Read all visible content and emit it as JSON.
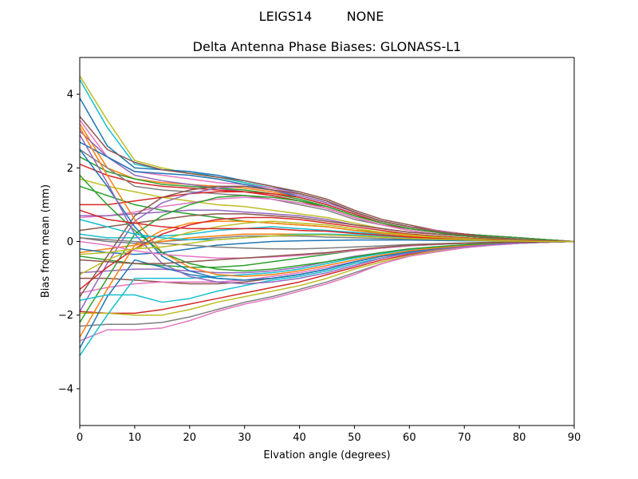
{
  "chart_data": {
    "type": "line",
    "suptitle_left": "LEIGS14",
    "suptitle_right": "NONE",
    "title": "Delta Antenna Phase Biases: GLONASS-L1",
    "xlabel": "Elvation angle (degrees)",
    "ylabel": "Bias from mean (mm)",
    "xlim": [
      0,
      90
    ],
    "ylim": [
      -5,
      5
    ],
    "xticks": [
      0,
      10,
      20,
      30,
      40,
      50,
      60,
      70,
      80,
      90
    ],
    "yticks": [
      -4,
      -2,
      0,
      2,
      4
    ],
    "grid": false,
    "x": [
      0,
      5,
      10,
      15,
      20,
      25,
      30,
      35,
      40,
      45,
      50,
      55,
      60,
      65,
      70,
      75,
      80,
      85,
      90
    ],
    "series": [
      {
        "color": "#bcbd22",
        "values": [
          4.5,
          3.3,
          2.2,
          2.0,
          1.85,
          1.75,
          1.6,
          1.45,
          1.3,
          1.1,
          0.8,
          0.55,
          0.4,
          0.3,
          0.2,
          0.15,
          0.1,
          0.05,
          0
        ]
      },
      {
        "color": "#17becf",
        "values": [
          4.4,
          3.1,
          2.1,
          1.95,
          1.9,
          1.75,
          1.6,
          1.45,
          1.3,
          1.1,
          0.8,
          0.55,
          0.4,
          0.3,
          0.2,
          0.15,
          0.1,
          0.05,
          0
        ]
      },
      {
        "color": "#1f77b4",
        "values": [
          3.9,
          2.6,
          2.0,
          1.95,
          1.9,
          1.8,
          1.65,
          1.5,
          1.3,
          1.1,
          0.8,
          0.55,
          0.4,
          0.3,
          0.2,
          0.15,
          0.1,
          0.05,
          0
        ]
      },
      {
        "color": "#8c564b",
        "values": [
          3.4,
          2.5,
          2.15,
          1.95,
          1.85,
          1.75,
          1.65,
          1.5,
          1.35,
          1.15,
          0.85,
          0.6,
          0.45,
          0.3,
          0.2,
          0.15,
          0.1,
          0.05,
          0
        ]
      },
      {
        "color": "#e377c2",
        "values": [
          3.3,
          2.3,
          1.9,
          1.8,
          1.7,
          1.6,
          1.55,
          1.45,
          1.3,
          1.1,
          0.8,
          0.55,
          0.4,
          0.3,
          0.2,
          0.15,
          0.1,
          0.05,
          0
        ]
      },
      {
        "color": "#ff7f0e",
        "values": [
          3.2,
          2.0,
          1.7,
          1.6,
          1.55,
          1.5,
          1.45,
          1.35,
          1.2,
          1.0,
          0.75,
          0.5,
          0.35,
          0.25,
          0.2,
          0.15,
          0.1,
          0.05,
          0
        ]
      },
      {
        "color": "#9467bd",
        "values": [
          3.0,
          2.3,
          1.8,
          1.65,
          1.55,
          1.45,
          1.35,
          1.25,
          1.1,
          0.95,
          0.7,
          0.5,
          0.35,
          0.25,
          0.2,
          0.15,
          0.1,
          0.05,
          0
        ]
      },
      {
        "color": "#2ca02c",
        "values": [
          2.3,
          1.9,
          1.7,
          1.55,
          1.5,
          1.45,
          1.4,
          1.3,
          1.15,
          0.95,
          0.7,
          0.5,
          0.35,
          0.25,
          0.2,
          0.15,
          0.1,
          0.05,
          0
        ]
      },
      {
        "color": "#d62728",
        "values": [
          2.1,
          1.8,
          1.6,
          1.5,
          1.45,
          1.4,
          1.35,
          1.25,
          1.1,
          0.9,
          0.65,
          0.45,
          0.35,
          0.25,
          0.15,
          0.1,
          0.05,
          0.02,
          0
        ]
      },
      {
        "color": "#7f7f7f",
        "values": [
          2.5,
          2.0,
          1.5,
          1.4,
          1.35,
          1.3,
          1.25,
          1.15,
          1.0,
          0.85,
          0.6,
          0.45,
          0.3,
          0.2,
          0.15,
          0.1,
          0.05,
          0.02,
          0
        ]
      },
      {
        "color": "#1f77b4",
        "values": [
          2.7,
          2.3,
          1.9,
          1.85,
          1.8,
          1.7,
          1.55,
          1.4,
          1.2,
          1.0,
          0.75,
          0.5,
          0.35,
          0.25,
          0.2,
          0.1,
          0.05,
          0.02,
          0
        ]
      },
      {
        "color": "#bcbd22",
        "values": [
          1.7,
          1.5,
          1.35,
          1.2,
          1.1,
          1.0,
          0.95,
          0.85,
          0.75,
          0.65,
          0.5,
          0.35,
          0.25,
          0.2,
          0.15,
          0.1,
          0.05,
          0.02,
          0
        ]
      },
      {
        "color": "#2ca02c",
        "values": [
          1.5,
          1.25,
          1.0,
          0.85,
          0.75,
          0.65,
          0.55,
          0.5,
          0.45,
          0.4,
          0.3,
          0.25,
          0.2,
          0.15,
          0.1,
          0.07,
          0.04,
          0.02,
          0
        ]
      },
      {
        "color": "#d62728",
        "values": [
          1.0,
          1.0,
          1.1,
          1.2,
          1.3,
          1.35,
          1.35,
          1.3,
          1.2,
          1.0,
          0.75,
          0.5,
          0.35,
          0.25,
          0.2,
          0.1,
          0.05,
          0.02,
          0
        ]
      },
      {
        "color": "#e377c2",
        "values": [
          0.65,
          0.7,
          0.8,
          0.95,
          1.05,
          1.15,
          1.2,
          1.15,
          1.05,
          0.9,
          0.65,
          0.45,
          0.3,
          0.2,
          0.15,
          0.1,
          0.05,
          0.02,
          0
        ]
      },
      {
        "color": "#9467bd",
        "values": [
          0.7,
          0.7,
          0.75,
          0.8,
          0.85,
          0.85,
          0.8,
          0.75,
          0.7,
          0.6,
          0.45,
          0.35,
          0.25,
          0.2,
          0.15,
          0.1,
          0.05,
          0.02,
          0
        ]
      },
      {
        "color": "#8c564b",
        "values": [
          0.3,
          0.4,
          0.5,
          0.6,
          0.7,
          0.75,
          0.75,
          0.7,
          0.65,
          0.55,
          0.45,
          0.35,
          0.25,
          0.2,
          0.15,
          0.1,
          0.05,
          0.02,
          0
        ]
      },
      {
        "color": "#17becf",
        "values": [
          0.2,
          0.1,
          0.1,
          0.15,
          0.2,
          0.3,
          0.35,
          0.4,
          0.35,
          0.3,
          0.25,
          0.2,
          0.15,
          0.1,
          0.07,
          0.05,
          0.03,
          0.01,
          0
        ]
      },
      {
        "color": "#7f7f7f",
        "values": [
          0.1,
          0.0,
          -0.05,
          0.0,
          0.05,
          0.1,
          0.15,
          0.15,
          0.15,
          0.12,
          0.1,
          0.08,
          0.06,
          0.05,
          0.04,
          0.03,
          0.02,
          0.01,
          0
        ]
      },
      {
        "color": "#ff7f0e",
        "values": [
          -0.3,
          -0.2,
          -0.1,
          0.0,
          0.1,
          0.15,
          0.2,
          0.2,
          0.2,
          0.18,
          0.15,
          0.12,
          0.1,
          0.07,
          0.05,
          0.03,
          0.02,
          0.01,
          0
        ]
      },
      {
        "color": "#1f77b4",
        "values": [
          -0.2,
          -0.3,
          -0.35,
          -0.3,
          -0.2,
          -0.1,
          -0.05,
          0.0,
          0.02,
          0.03,
          0.04,
          0.04,
          0.04,
          0.03,
          0.02,
          0.02,
          0.01,
          0.0,
          0
        ]
      },
      {
        "color": "#2ca02c",
        "values": [
          -0.4,
          -0.5,
          -0.6,
          -0.65,
          -0.7,
          -0.7,
          -0.65,
          -0.55,
          -0.45,
          -0.35,
          -0.25,
          -0.18,
          -0.12,
          -0.08,
          -0.05,
          -0.03,
          -0.02,
          -0.01,
          0
        ]
      },
      {
        "color": "#9467bd",
        "values": [
          -0.85,
          -0.8,
          -0.75,
          -0.75,
          -0.8,
          -0.85,
          -0.85,
          -0.8,
          -0.7,
          -0.55,
          -0.4,
          -0.3,
          -0.2,
          -0.15,
          -0.1,
          -0.06,
          -0.03,
          -0.01,
          0
        ]
      },
      {
        "color": "#8c564b",
        "values": [
          -1.0,
          -1.0,
          -1.05,
          -1.1,
          -1.15,
          -1.15,
          -1.1,
          -1.0,
          -0.9,
          -0.75,
          -0.55,
          -0.4,
          -0.3,
          -0.2,
          -0.12,
          -0.07,
          -0.04,
          -0.02,
          0
        ]
      },
      {
        "color": "#e377c2",
        "values": [
          -1.4,
          -1.25,
          -1.15,
          -1.1,
          -1.1,
          -1.1,
          -1.05,
          -0.95,
          -0.85,
          -0.7,
          -0.55,
          -0.4,
          -0.28,
          -0.2,
          -0.12,
          -0.07,
          -0.04,
          -0.02,
          0
        ]
      },
      {
        "color": "#d62728",
        "values": [
          -1.9,
          -1.95,
          -1.95,
          -1.85,
          -1.7,
          -1.55,
          -1.4,
          -1.25,
          -1.1,
          -0.9,
          -0.7,
          -0.5,
          -0.35,
          -0.25,
          -0.15,
          -0.09,
          -0.05,
          -0.02,
          0
        ]
      },
      {
        "color": "#bcbd22",
        "values": [
          -1.95,
          -1.95,
          -2.0,
          -2.0,
          -1.85,
          -1.65,
          -1.5,
          -1.35,
          -1.2,
          -1.0,
          -0.75,
          -0.55,
          -0.38,
          -0.25,
          -0.15,
          -0.09,
          -0.05,
          -0.02,
          0
        ]
      },
      {
        "color": "#7f7f7f",
        "values": [
          -2.3,
          -2.25,
          -2.25,
          -2.2,
          -2.05,
          -1.85,
          -1.65,
          -1.5,
          -1.3,
          -1.1,
          -0.85,
          -0.6,
          -0.4,
          -0.28,
          -0.17,
          -0.1,
          -0.05,
          -0.02,
          0
        ]
      },
      {
        "color": "#e377c2",
        "values": [
          -2.7,
          -2.4,
          -2.4,
          -2.35,
          -2.15,
          -1.9,
          -1.7,
          -1.55,
          -1.35,
          -1.15,
          -0.9,
          -0.6,
          -0.4,
          -0.28,
          -0.17,
          -0.1,
          -0.05,
          -0.02,
          0
        ]
      },
      {
        "color": "#17becf",
        "values": [
          -3.1,
          -2.0,
          -1.0,
          -1.0,
          -1.0,
          -0.95,
          -0.9,
          -0.85,
          -0.75,
          -0.6,
          -0.45,
          -0.33,
          -0.22,
          -0.15,
          -0.1,
          -0.06,
          -0.03,
          -0.01,
          0
        ]
      },
      {
        "color": "#1f77b4",
        "values": [
          -2.9,
          -1.5,
          -0.5,
          -0.7,
          -0.9,
          -1.0,
          -1.05,
          -1.0,
          -0.9,
          -0.75,
          -0.55,
          -0.4,
          -0.28,
          -0.2,
          -0.12,
          -0.07,
          -0.04,
          -0.02,
          0
        ]
      },
      {
        "color": "#ff7f0e",
        "values": [
          -2.6,
          -1.3,
          -0.1,
          0.3,
          0.5,
          0.55,
          0.55,
          0.5,
          0.45,
          0.4,
          0.3,
          0.22,
          0.15,
          0.1,
          0.07,
          0.04,
          0.02,
          0.01,
          0
        ]
      },
      {
        "color": "#2ca02c",
        "values": [
          -2.2,
          -1.0,
          0.2,
          0.7,
          1.0,
          1.2,
          1.25,
          1.2,
          1.1,
          0.95,
          0.7,
          0.5,
          0.35,
          0.25,
          0.15,
          0.1,
          0.05,
          0.02,
          0
        ]
      },
      {
        "color": "#9467bd",
        "values": [
          -1.9,
          -0.6,
          0.55,
          1.05,
          1.3,
          1.45,
          1.5,
          1.4,
          1.25,
          1.05,
          0.8,
          0.55,
          0.4,
          0.28,
          0.18,
          0.11,
          0.06,
          0.02,
          0
        ]
      },
      {
        "color": "#8c564b",
        "values": [
          -1.5,
          -0.4,
          0.7,
          1.2,
          1.4,
          1.5,
          1.5,
          1.4,
          1.3,
          1.1,
          0.8,
          0.55,
          0.4,
          0.28,
          0.18,
          0.11,
          0.06,
          0.02,
          0
        ]
      },
      {
        "color": "#d62728",
        "values": [
          -1.3,
          -0.7,
          -0.2,
          0.2,
          0.45,
          0.6,
          0.65,
          0.65,
          0.6,
          0.5,
          0.4,
          0.3,
          0.2,
          0.14,
          0.1,
          0.06,
          0.03,
          0.01,
          0
        ]
      },
      {
        "color": "#bcbd22",
        "values": [
          -0.9,
          -0.5,
          -0.2,
          0.05,
          0.25,
          0.4,
          0.5,
          0.55,
          0.5,
          0.45,
          0.35,
          0.25,
          0.18,
          0.12,
          0.08,
          0.05,
          0.03,
          0.01,
          0
        ]
      },
      {
        "color": "#17becf",
        "values": [
          -1.6,
          -1.45,
          -1.45,
          -1.65,
          -1.55,
          -1.35,
          -1.2,
          -1.05,
          -0.95,
          -0.8,
          -0.6,
          -0.45,
          -0.3,
          -0.2,
          -0.12,
          -0.07,
          -0.04,
          -0.02,
          0
        ]
      },
      {
        "color": "#1f77b4",
        "values": [
          2.5,
          1.5,
          0.4,
          -0.4,
          -0.8,
          -1.0,
          -1.05,
          -1.0,
          -0.9,
          -0.75,
          -0.55,
          -0.4,
          -0.28,
          -0.2,
          -0.12,
          -0.07,
          -0.04,
          -0.02,
          0
        ]
      },
      {
        "color": "#ff7f0e",
        "values": [
          3.1,
          1.8,
          0.6,
          -0.3,
          -0.7,
          -0.9,
          -0.95,
          -0.9,
          -0.8,
          -0.65,
          -0.5,
          -0.37,
          -0.25,
          -0.17,
          -0.11,
          -0.07,
          -0.04,
          -0.02,
          0
        ]
      },
      {
        "color": "#2ca02c",
        "values": [
          1.8,
          1.0,
          0.3,
          -0.3,
          -0.6,
          -0.75,
          -0.8,
          -0.75,
          -0.65,
          -0.55,
          -0.42,
          -0.3,
          -0.2,
          -0.14,
          -0.09,
          -0.05,
          -0.03,
          -0.01,
          0
        ]
      },
      {
        "color": "#9467bd",
        "values": [
          2.9,
          1.6,
          0.2,
          -0.6,
          -0.95,
          -1.1,
          -1.15,
          -1.1,
          -1.0,
          -0.85,
          -0.65,
          -0.45,
          -0.32,
          -0.22,
          -0.14,
          -0.08,
          -0.04,
          -0.02,
          0
        ]
      },
      {
        "color": "#e377c2",
        "values": [
          0.0,
          -0.1,
          -0.25,
          -0.35,
          -0.4,
          -0.45,
          -0.45,
          -0.42,
          -0.38,
          -0.32,
          -0.25,
          -0.18,
          -0.12,
          -0.08,
          -0.05,
          -0.03,
          -0.02,
          -0.01,
          0
        ]
      },
      {
        "color": "#7f7f7f",
        "values": [
          0.1,
          0.05,
          0.0,
          -0.05,
          -0.1,
          -0.15,
          -0.18,
          -0.2,
          -0.2,
          -0.18,
          -0.15,
          -0.12,
          -0.08,
          -0.06,
          -0.04,
          -0.02,
          -0.01,
          0.0,
          0
        ]
      },
      {
        "color": "#8c564b",
        "values": [
          -0.5,
          -0.55,
          -0.6,
          -0.6,
          -0.55,
          -0.5,
          -0.45,
          -0.4,
          -0.35,
          -0.3,
          -0.22,
          -0.16,
          -0.1,
          -0.07,
          -0.05,
          -0.03,
          -0.02,
          -0.01,
          0
        ]
      },
      {
        "color": "#17becf",
        "values": [
          0.6,
          0.4,
          0.2,
          0.1,
          0.05,
          0.05,
          0.1,
          0.15,
          0.2,
          0.2,
          0.18,
          0.14,
          0.1,
          0.07,
          0.05,
          0.03,
          0.02,
          0.01,
          0
        ]
      },
      {
        "color": "#d62728",
        "values": [
          0.85,
          0.6,
          0.5,
          0.4,
          0.35,
          0.35,
          0.35,
          0.35,
          0.3,
          0.28,
          0.22,
          0.17,
          0.12,
          0.08,
          0.05,
          0.03,
          0.02,
          0.01,
          0
        ]
      },
      {
        "color": "#bcbd22",
        "values": [
          -0.35,
          -0.3,
          -0.2,
          -0.15,
          -0.05,
          0.05,
          0.1,
          0.15,
          0.18,
          0.18,
          0.15,
          0.12,
          0.08,
          0.06,
          0.04,
          0.02,
          0.01,
          0.0,
          0
        ]
      }
    ]
  }
}
